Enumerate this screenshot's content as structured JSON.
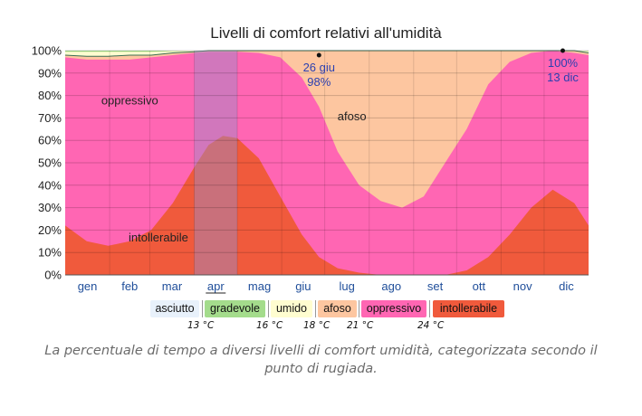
{
  "chart_data": {
    "type": "area",
    "title": "Livelli di comfort relativi all'umidità",
    "xlabel": "",
    "ylabel": "",
    "ylim": [
      0,
      100
    ],
    "y_ticks": [
      "0%",
      "10%",
      "20%",
      "30%",
      "40%",
      "50%",
      "60%",
      "70%",
      "80%",
      "90%",
      "100%"
    ],
    "months": [
      "gen",
      "feb",
      "mar",
      "apr",
      "mag",
      "giu",
      "lug",
      "ago",
      "set",
      "ott",
      "nov",
      "dic"
    ],
    "highlighted_month": "apr",
    "x": [
      0,
      15,
      30,
      45,
      60,
      75,
      90,
      100,
      110,
      120,
      135,
      150,
      165,
      177,
      190,
      205,
      220,
      235,
      250,
      265,
      280,
      295,
      310,
      325,
      340,
      355,
      365
    ],
    "series": [
      {
        "name": "intollerabile",
        "color": "#f05a3c",
        "values": [
          22,
          15,
          13,
          15,
          20,
          32,
          48,
          58,
          62,
          61,
          52,
          35,
          18,
          8,
          3,
          1,
          0,
          0,
          0,
          0,
          2,
          8,
          18,
          30,
          38,
          32,
          22
        ]
      },
      {
        "name": "oppressivo",
        "color": "#ff66b3",
        "values": [
          97,
          96,
          96,
          96,
          97,
          98,
          99,
          99.5,
          99.5,
          99.5,
          99,
          97,
          88,
          75,
          55,
          40,
          33,
          30,
          35,
          50,
          65,
          85,
          95,
          99,
          100,
          99,
          98
        ]
      },
      {
        "name": "afoso",
        "color": "#fdc6a0",
        "values": [
          98,
          97.5,
          97.5,
          98,
          98,
          99,
          99.5,
          100,
          100,
          100,
          100,
          100,
          100,
          100,
          100,
          100,
          100,
          100,
          100,
          100,
          100,
          100,
          100,
          100,
          100,
          100,
          99
        ]
      },
      {
        "name": "umido",
        "color": "#fffdd0",
        "values": [
          99.5,
          99.5,
          99.5,
          99.5,
          99.5,
          99.8,
          100,
          100,
          100,
          100,
          100,
          100,
          100,
          100,
          100,
          100,
          100,
          100,
          100,
          100,
          100,
          100,
          100,
          100,
          100,
          100,
          99.8
        ]
      },
      {
        "name": "gradevole",
        "color": "#a4dc8c",
        "values": [
          100,
          100,
          100,
          100,
          100,
          100,
          100,
          100,
          100,
          100,
          100,
          100,
          100,
          100,
          100,
          100,
          100,
          100,
          100,
          100,
          100,
          100,
          100,
          100,
          100,
          100,
          100
        ]
      }
    ],
    "annotations": [
      {
        "label": "26 giu",
        "value": "98%",
        "x": 177,
        "y": 98
      },
      {
        "label": "100%",
        "value": "13 dic",
        "x": 347,
        "y": 100
      }
    ],
    "region_labels": [
      {
        "text": "oppressivo",
        "x": 45,
        "y": 76
      },
      {
        "text": "afoso",
        "x": 200,
        "y": 69
      },
      {
        "text": "intollerabile",
        "x": 65,
        "y": 15
      }
    ]
  },
  "legend": {
    "items": [
      {
        "label": "asciutto",
        "color": "#e8f1fb"
      },
      {
        "label": "gradevole",
        "color": "#a4dc8c"
      },
      {
        "label": "umido",
        "color": "#fffdd0"
      },
      {
        "label": "afoso",
        "color": "#fdc6a0"
      },
      {
        "label": "oppressivo",
        "color": "#ff66b3"
      },
      {
        "label": "intollerabile",
        "color": "#f05a3c"
      }
    ],
    "temps": [
      "13 °C",
      "16 °C",
      "18 °C",
      "21 °C",
      "24 °C"
    ]
  },
  "caption": "La percentuale di tempo a diversi livelli di comfort umidità, categorizzata secondo il punto di rugiada."
}
